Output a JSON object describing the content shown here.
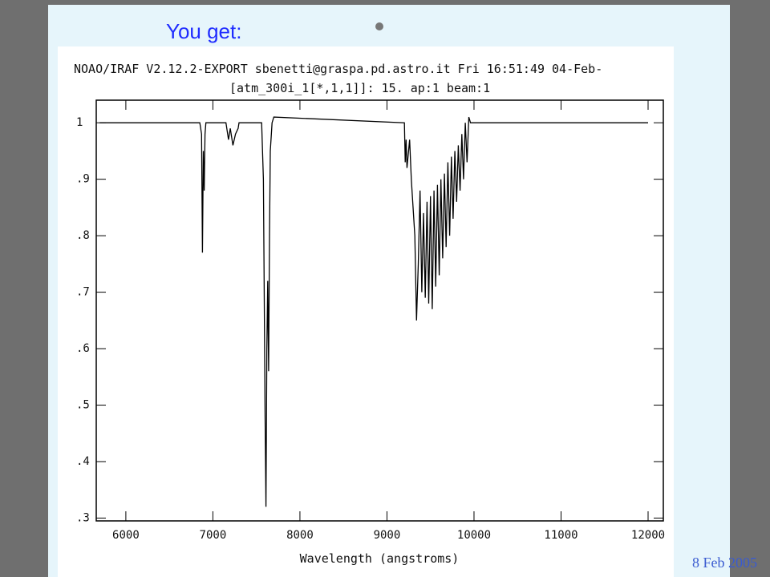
{
  "slide_title": "You get:",
  "footer_date": "8 Feb 2005",
  "chart_data": {
    "type": "line",
    "header_lines": [
      "NOAO/IRAF V2.12.2-EXPORT sbenetti@graspa.pd.astro.it Fri 16:51:49 04-Feb-",
      "[atm_300i_1[*,1,1]]: 15. ap:1 beam:1"
    ],
    "x_label": "Wavelength (angstroms)",
    "xlim": [
      5660,
      12175
    ],
    "ylim": [
      0.295,
      1.04
    ],
    "xticks": [
      6000,
      7000,
      8000,
      9000,
      10000,
      11000,
      12000
    ],
    "yticks": [
      {
        "value": 0.3,
        "label": ".3"
      },
      {
        "value": 0.4,
        "label": ".4"
      },
      {
        "value": 0.5,
        "label": ".5"
      },
      {
        "value": 0.6,
        "label": ".6"
      },
      {
        "value": 0.7,
        "label": ".7"
      },
      {
        "value": 0.8,
        "label": ".8"
      },
      {
        "value": 0.9,
        "label": ".9"
      },
      1
    ],
    "series": [
      {
        "color": "#000000",
        "x": [
          5700,
          6850,
          6860,
          6870,
          6880,
          6890,
          6900,
          6910,
          6920,
          7150,
          7180,
          7200,
          7230,
          7260,
          7290,
          7300,
          7560,
          7580,
          7600,
          7610,
          7620,
          7630,
          7640,
          7650,
          7660,
          7680,
          7700,
          9200,
          9210,
          9220,
          9230,
          9260,
          9280,
          9300,
          9320,
          9340,
          9360,
          9380,
          9400,
          9420,
          9440,
          9460,
          9480,
          9500,
          9520,
          9540,
          9560,
          9580,
          9600,
          9620,
          9640,
          9660,
          9680,
          9700,
          9720,
          9740,
          9760,
          9780,
          9800,
          9820,
          9840,
          9860,
          9880,
          9900,
          9920,
          9940,
          9960,
          12000
        ],
        "values": [
          1,
          1,
          0.99,
          0.98,
          0.77,
          0.95,
          0.88,
          0.98,
          1,
          1,
          0.97,
          0.99,
          0.96,
          0.98,
          0.99,
          1,
          1,
          0.9,
          0.48,
          0.32,
          0.6,
          0.72,
          0.56,
          0.8,
          0.95,
          1,
          1.01,
          1,
          0.93,
          0.97,
          0.92,
          0.97,
          0.9,
          0.85,
          0.8,
          0.65,
          0.75,
          0.88,
          0.7,
          0.84,
          0.69,
          0.86,
          0.68,
          0.87,
          0.67,
          0.88,
          0.71,
          0.89,
          0.73,
          0.9,
          0.76,
          0.91,
          0.78,
          0.93,
          0.8,
          0.94,
          0.83,
          0.95,
          0.86,
          0.96,
          0.88,
          0.98,
          0.9,
          1,
          0.93,
          1.01,
          1,
          1
        ]
      }
    ]
  }
}
